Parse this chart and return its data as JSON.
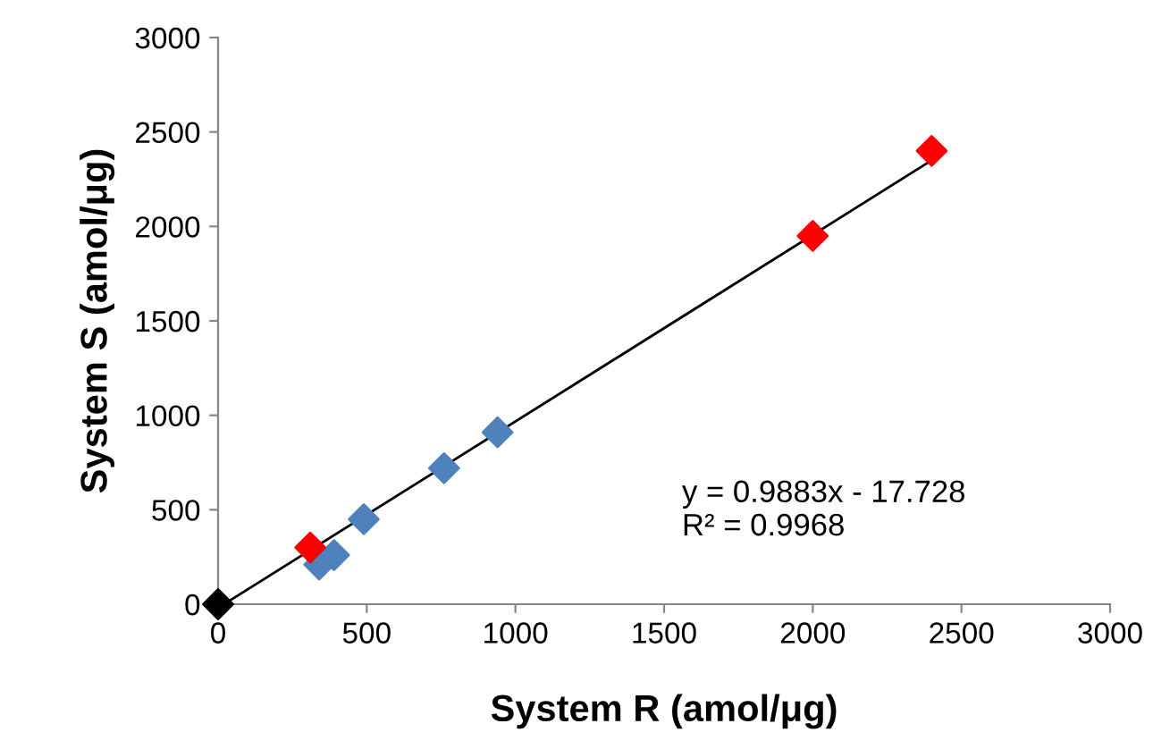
{
  "chart_data": {
    "type": "scatter",
    "xlabel": "System R (amol/μg)",
    "ylabel": "System S (amol/μg)",
    "series": [
      {
        "x": [
          340,
          390,
          490,
          760,
          940
        ],
        "values": [
          210,
          260,
          450,
          720,
          910
        ],
        "color": "#4f81bd"
      },
      {
        "x": [
          310,
          2000,
          2400
        ],
        "values": [
          300,
          1950,
          2400
        ],
        "color": "#ff0000"
      },
      {
        "x": [
          0
        ],
        "values": [
          0
        ],
        "color": "#000000"
      },
      {
        "type": "line",
        "marker": "none",
        "x": [
          20,
          2400
        ],
        "values": [
          0,
          2350
        ],
        "color": "#000000"
      }
    ],
    "xlim": [
      0,
      3000
    ],
    "ylim": [
      0,
      3000
    ],
    "xticks": [
      0,
      500,
      1000,
      1500,
      2000,
      2500,
      3000
    ],
    "yticks": [
      0,
      500,
      1000,
      1500,
      2000,
      2500,
      3000
    ],
    "marker": "diamond",
    "grid": false,
    "legend": false,
    "annotations": [
      "y = 0.9883x - 17.728\nR² = 0.9968"
    ]
  }
}
